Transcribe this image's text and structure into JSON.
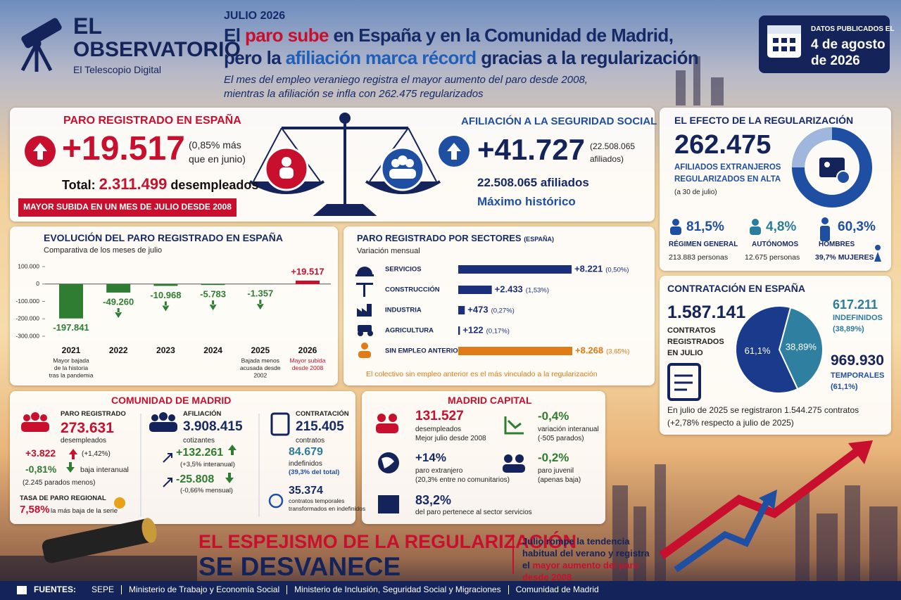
{
  "brand": {
    "name_line1": "EL",
    "name_line2": "OBSERVATORIO",
    "tagline": "El Telescopio Digital"
  },
  "header": {
    "kicker": "JULIO 2026",
    "title": [
      [
        {
          "text": "El "
        },
        {
          "text": "paro sube",
          "color": "#c8102e"
        },
        {
          "text": " en España y en la Comunidad de Madrid,"
        }
      ],
      [
        {
          "text": "pero la "
        },
        {
          "text": "afiliación marca récord",
          "color": "#1f5fb8"
        },
        {
          "text": " gracias a la regularización"
        }
      ]
    ],
    "subtitle_lines": [
      "El mes del empleo veraniego registra el mayor aumento del paro desde 2008,",
      "mientras la afiliación se infla con 262.475 regularizados"
    ]
  },
  "date_box": {
    "label": "DATOS PUBLICADOS EL",
    "date_lines": [
      "4 de agosto",
      "de 2026"
    ]
  },
  "paro_espana": {
    "title": "PARO REGISTRADO EN ESPAÑA",
    "value": "+19.517",
    "note_lines": [
      "(0,85% más",
      "que en junio)"
    ],
    "total_label": "Total:",
    "total_value": "2.311.499",
    "total_unit": "desempleados",
    "banner": "MAYOR SUBIDA EN UN MES DE JULIO DESDE 2008"
  },
  "afiliacion": {
    "title": "AFILIACIÓN A LA SEGURIDAD SOCIAL",
    "value": "+41.727",
    "note_lines": [
      "(22.508.065",
      "afiliados)"
    ],
    "total_value": "22.508.065",
    "total_unit": "afiliados",
    "highlight": "Máximo histórico"
  },
  "regularizacion": {
    "title": "EL EFECTO DE LA REGULARIZACIÓN",
    "value": "262.475",
    "label_lines": [
      "AFILIADOS EXTRANJEROS",
      "REGULARIZADOS EN ALTA"
    ],
    "note": "(a 30 de julio)",
    "stats": [
      {
        "value": "81,5%",
        "label": "RÉGIMEN GENERAL",
        "detail": "213.883 personas"
      },
      {
        "value": "4,8%",
        "label": "AUTÓNOMOS",
        "detail": "12.675 personas"
      },
      {
        "value": "60,3%",
        "label": "HOMBRES",
        "detail": "39,7% MUJERES"
      }
    ]
  },
  "contratacion": {
    "title": "CONTRATACIÓN EN ESPAÑA",
    "value": "1.587.141",
    "label_lines": [
      "CONTRATOS",
      "REGISTRADOS",
      "EN JULIO"
    ],
    "indef_value": "617.211",
    "indef_label": "INDEFINIDOS",
    "indef_pct": "(38,89%)",
    "temp_value": "969.930",
    "temp_label": "TEMPORALES",
    "temp_pct": "(61,1%)",
    "footer_lines": [
      "En julio de 2025 se registraron 1.544.275 contratos",
      "(+2,78% respecto a julio de 2025)"
    ]
  },
  "comunidad_madrid": {
    "title": "COMUNIDAD DE MADRID",
    "paro": {
      "label": "PARO REGISTRADO",
      "value": "273.631",
      "unit": "desempleados",
      "change": "+3.822",
      "change_pct": "(+1,42%)",
      "yoy": "-0,81%",
      "yoy_label": "baja interanual",
      "yoy_note": "(2.245 parados menos)",
      "rate_label": "TASA DE PARO REGIONAL",
      "rate_value": "7,58%",
      "rate_note": "la más baja de la serie"
    },
    "afiliacion": {
      "label": "AFILIACIÓN",
      "value": "3.908.415",
      "unit": "cotizantes",
      "change1": "+132.261",
      "change1_note": "(+3,5% interanual)",
      "change2": "-25.808",
      "change2_note": "(-0,66% mensual)"
    },
    "contratacion": {
      "label": "CONTRATACIÓN",
      "value": "215.405",
      "unit": "contratos",
      "indef_value": "84.679",
      "indef_label": "indefinidos",
      "indef_note": "(39,3% del total)",
      "conv_value": "35.374",
      "conv_label_lines": [
        "contratos temporales",
        "transformados en indefinidos"
      ]
    }
  },
  "madrid_capital": {
    "title": "MADRID CAPITAL",
    "items": [
      {
        "value": "131.527",
        "lines": [
          "desempleados",
          "Mejor julio desde 2008"
        ]
      },
      {
        "value": "-0,4%",
        "lines": [
          "variación interanual",
          "(-505 parados)"
        ]
      },
      {
        "value": "+14%",
        "lines": [
          "paro extranjero",
          "(20,3% entre no comunitarios)"
        ]
      },
      {
        "value": "-0,2%",
        "lines": [
          "paro juvenil",
          "(apenas baja)"
        ]
      },
      {
        "value": "83,2%",
        "lines": [
          "del paro pertenece al sector servicios"
        ]
      }
    ]
  },
  "conclusion": {
    "line1": "EL ESPEJISMO DE LA REGULARIZACIÓN",
    "line2": "SE DESVANECE",
    "side": [
      {
        "text": "Julio rompe la tendencia habitual del verano y registra el "
      },
      {
        "text": "mayor aumento del paro desde 2008",
        "color": "#c8102e"
      }
    ]
  },
  "sources": {
    "label": "FUENTES:",
    "items": [
      "SEPE",
      "Ministerio de Trabajo y Economía Social",
      "Ministerio de Inclusión, Seguridad Social y Migraciones",
      "Comunidad de Madrid"
    ]
  },
  "chart_data": [
    {
      "type": "bar",
      "title": "EVOLUCIÓN DEL PARO REGISTRADO EN ESPAÑA",
      "subtitle": "Comparativa de los meses de julio",
      "categories": [
        "2021",
        "2022",
        "2023",
        "2024",
        "2025",
        "2026"
      ],
      "values": [
        -197841,
        -49260,
        -10968,
        -5783,
        -1357,
        19517
      ],
      "value_labels": [
        "-197.841",
        "-49.260",
        "-10.968",
        "-5.783",
        "-1.357",
        "+19.517"
      ],
      "colors": [
        "#2e7d32",
        "#2e7d32",
        "#2e7d32",
        "#2e7d32",
        "#2e7d32",
        "#c8102e"
      ],
      "category_notes": [
        [
          "Mayor bajada",
          "de la historia",
          "tras la pandemia"
        ],
        null,
        null,
        null,
        [
          "Bajada menos",
          "acusada desde",
          "2002"
        ],
        [
          "Mayor subida",
          "desde 2008"
        ]
      ],
      "note_colors": [
        "#222222",
        null,
        null,
        null,
        "#222222",
        "#c8102e"
      ],
      "ylim": [
        -300000,
        100000
      ],
      "yticks": [
        {
          "value": 100000,
          "label": "100.000"
        },
        0,
        {
          "value": -100000,
          "label": "-100.000"
        },
        {
          "value": -200000,
          "label": "-200.000"
        },
        {
          "value": -300000,
          "label": "-300.000"
        }
      ]
    },
    {
      "type": "hbar",
      "title": "PARO REGISTRADO POR SECTORES",
      "title_note": "(ESPAÑA)",
      "subtitle": "Variación mensual",
      "categories": [
        "SERVICIOS",
        "CONSTRUCCIÓN",
        "INDUSTRIA",
        "AGRICULTURA",
        "SIN EMPLEO ANTERIOR"
      ],
      "values": [
        8221,
        2433,
        473,
        122,
        8268
      ],
      "value_labels": [
        "+8.221",
        "+2.433",
        "+473",
        "+122",
        "+8.268"
      ],
      "pct_labels": [
        "(0,50%)",
        "(1,53%)",
        "(0,27%)",
        "(0,17%)",
        "(3,65%)"
      ],
      "colors": [
        "#1b2f7a",
        "#1b2f7a",
        "#1b2f7a",
        "#1b2f7a",
        "#e07b16"
      ],
      "footnote": "El colectivo sin empleo anterior es el más vinculado a la regularización"
    },
    {
      "type": "pie",
      "values": [
        38.89,
        61.1
      ],
      "value_labels": [
        "38,89%",
        "61,1%"
      ],
      "colors": [
        "#2f7fa0",
        "#1a3a8c"
      ]
    }
  ]
}
